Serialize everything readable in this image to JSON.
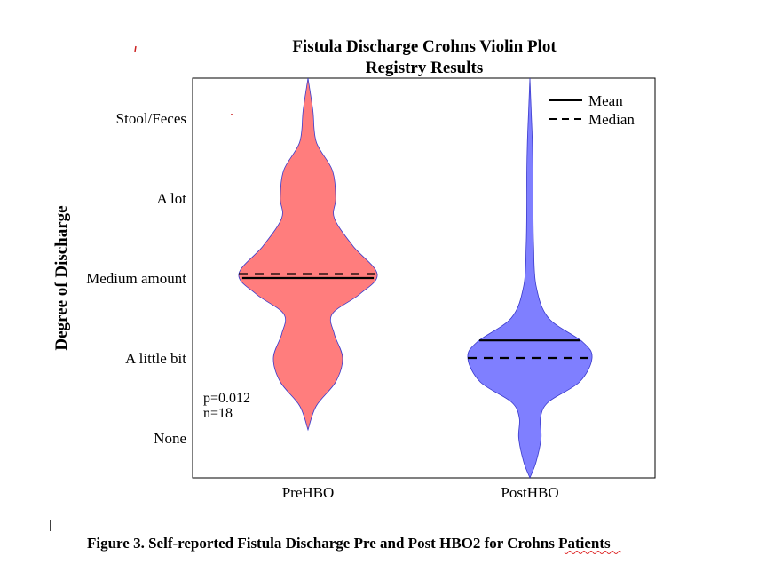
{
  "chart_data": {
    "type": "violin",
    "title": [
      "Fistula Discharge Crohns Violin Plot",
      "Registry Results"
    ],
    "ylabel": "Degree of Discharge",
    "xlabel": "",
    "categories": [
      "PreHBO",
      "PostHBO"
    ],
    "y_tick_labels": [
      "None",
      "A little bit",
      "Medium amount",
      "A lot",
      "Stool/Feces"
    ],
    "y_tick_values": [
      0,
      1,
      2,
      3,
      4
    ],
    "ylim": [
      -0.5,
      5.0
    ],
    "grid": false,
    "legend": {
      "placement": "top-right",
      "entries": [
        {
          "label": "Mean",
          "style": "solid"
        },
        {
          "label": "Median",
          "style": "dashed"
        }
      ]
    },
    "series": [
      {
        "category": "PreHBO",
        "color": "#ff7d7d",
        "mean": 2.0,
        "median": 2.05,
        "range": [
          0.1,
          4.5
        ],
        "density_profile": [
          {
            "y": 0.1,
            "width": 0.0
          },
          {
            "y": 0.4,
            "width": 0.12
          },
          {
            "y": 0.7,
            "width": 0.4
          },
          {
            "y": 1.0,
            "width": 0.5
          },
          {
            "y": 1.3,
            "width": 0.38
          },
          {
            "y": 1.55,
            "width": 0.35
          },
          {
            "y": 1.8,
            "width": 0.75
          },
          {
            "y": 2.05,
            "width": 1.0
          },
          {
            "y": 2.4,
            "width": 0.65
          },
          {
            "y": 2.75,
            "width": 0.38
          },
          {
            "y": 3.0,
            "width": 0.4
          },
          {
            "y": 3.35,
            "width": 0.35
          },
          {
            "y": 3.7,
            "width": 0.12
          },
          {
            "y": 4.1,
            "width": 0.07
          },
          {
            "y": 4.5,
            "width": 0.0
          }
        ]
      },
      {
        "category": "PostHBO",
        "color": "#7f7fff",
        "mean": 1.22,
        "median": 1.0,
        "range": [
          -0.5,
          4.5
        ],
        "density_profile": [
          {
            "y": -0.5,
            "width": 0.0
          },
          {
            "y": -0.3,
            "width": 0.1
          },
          {
            "y": 0.0,
            "width": 0.18
          },
          {
            "y": 0.25,
            "width": 0.17
          },
          {
            "y": 0.45,
            "width": 0.3
          },
          {
            "y": 0.7,
            "width": 0.8
          },
          {
            "y": 1.0,
            "width": 1.0
          },
          {
            "y": 1.2,
            "width": 0.85
          },
          {
            "y": 1.5,
            "width": 0.3
          },
          {
            "y": 1.9,
            "width": 0.1
          },
          {
            "y": 2.4,
            "width": 0.06
          },
          {
            "y": 2.9,
            "width": 0.05
          },
          {
            "y": 3.3,
            "width": 0.05
          },
          {
            "y": 3.7,
            "width": 0.04
          },
          {
            "y": 4.1,
            "width": 0.02
          },
          {
            "y": 4.5,
            "width": 0.0
          }
        ]
      }
    ],
    "annotations": [
      "p=0.012",
      "n=18"
    ]
  },
  "caption": {
    "text_bold": "Figure 3. Self-reported Fistula Discharge Pre and Post HBO2 for ",
    "misspelled_word": "Crohns",
    "text_after": " Patients"
  }
}
